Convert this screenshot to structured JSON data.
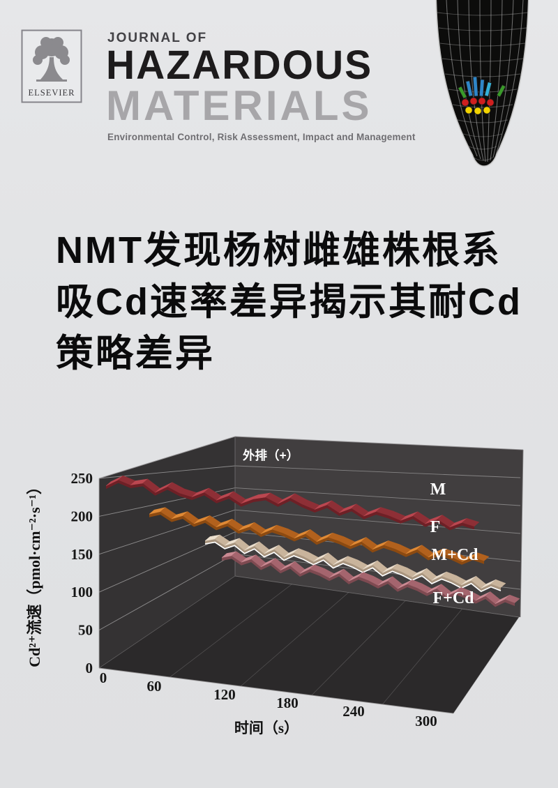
{
  "header": {
    "publisher": "ELSEVIER",
    "journal_of": "JOURNAL OF",
    "title_line1": "HAZARDOUS",
    "title_line2": "MATERIALS",
    "subtitle": "Environmental Control, Risk Assessment, Impact and Management"
  },
  "hero": {
    "line1": "NMT发现杨树雌雄株根系",
    "line2": "吸Cd速率差异揭示其耐Cd",
    "line3": "策略差异"
  },
  "chart_data": {
    "type": "line",
    "variant": "3d-waterfall-ribbon",
    "annotation": "外排（+）",
    "xlabel": "时间（s）",
    "ylabel": "Cd²⁺流速（pmol·cm⁻²·s⁻¹）",
    "xticks": [
      0,
      60,
      120,
      180,
      240,
      300
    ],
    "yticks": [
      0,
      50,
      100,
      150,
      200,
      250
    ],
    "xlim": [
      0,
      300
    ],
    "ylim": [
      0,
      250
    ],
    "grid": true,
    "legend_position": "right-wall-inline",
    "x": [
      0,
      10,
      20,
      30,
      40,
      50,
      60,
      70,
      80,
      90,
      100,
      110,
      120,
      130,
      140,
      150,
      160,
      170,
      180,
      190,
      200,
      210,
      220,
      230,
      240,
      250,
      260,
      270,
      280,
      290,
      300
    ],
    "series": [
      {
        "name": "M",
        "color": "#b03c44",
        "values": [
          232,
          242,
          236,
          240,
          228,
          238,
          230,
          226,
          234,
          224,
          232,
          222,
          230,
          234,
          226,
          236,
          228,
          222,
          230,
          220,
          228,
          218,
          226,
          222,
          216,
          224,
          214,
          222,
          212,
          220,
          216
        ]
      },
      {
        "name": "F",
        "color": "#d47b28",
        "values": [
          200,
          205,
          196,
          202,
          192,
          199,
          190,
          197,
          188,
          195,
          186,
          194,
          190,
          184,
          192,
          182,
          190,
          186,
          180,
          188,
          178,
          186,
          182,
          176,
          184,
          174,
          182,
          178,
          172,
          180,
          176
        ]
      },
      {
        "name": "M+Cd",
        "color": "#ddccb8",
        "values": [
          166,
          170,
          162,
          168,
          158,
          166,
          156,
          164,
          154,
          162,
          158,
          152,
          160,
          150,
          158,
          154,
          148,
          156,
          146,
          154,
          150,
          144,
          152,
          142,
          150,
          146,
          140,
          148,
          138,
          146,
          142
        ]
      },
      {
        "name": "F+Cd",
        "color": "#bb7a83",
        "values": [
          144,
          148,
          140,
          146,
          136,
          144,
          134,
          142,
          132,
          140,
          136,
          130,
          138,
          128,
          136,
          132,
          126,
          134,
          124,
          132,
          128,
          122,
          130,
          120,
          128,
          124,
          118,
          126,
          116,
          124,
          120
        ]
      }
    ],
    "style": {
      "left_wall": "#343233",
      "back_wall": "#413e3f",
      "floor": "#2b292a",
      "gridline": "#c9c9c9",
      "background": "#e2e3e5",
      "label_color": "#ffffff"
    }
  }
}
